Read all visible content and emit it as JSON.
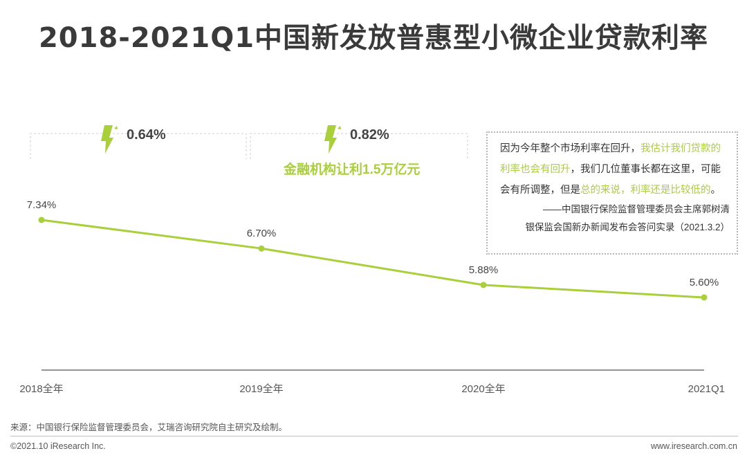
{
  "title": "2018-2021Q1中国新发放普惠型小微企业贷款利率",
  "colors": {
    "accent": "#a9cf3b",
    "text": "#333333",
    "axis": "#555555"
  },
  "chart_data": {
    "type": "line",
    "categories": [
      "2018全年",
      "2019全年",
      "2020全年",
      "2021Q1"
    ],
    "series": [
      {
        "name": "普惠型小微企业贷款利率",
        "values": [
          7.34,
          6.7,
          5.88,
          5.6
        ],
        "labels": [
          "7.34%",
          "6.70%",
          "5.88%",
          "5.60%"
        ]
      }
    ],
    "ylim": [
      4.5,
      8.5
    ],
    "unit": "%",
    "annotations": [
      {
        "from": "2018全年",
        "to": "2019全年",
        "text": "0.64%",
        "icon": "down-arrow-icon"
      },
      {
        "from": "2019全年",
        "to": "2020全年",
        "text": "0.82%",
        "icon": "down-arrow-icon"
      }
    ],
    "annotation_note": "金融机构让利1.5万亿元"
  },
  "quote": {
    "parts": [
      {
        "text": "因为今年整个市场利率在回升，",
        "hl": false
      },
      {
        "text": "我估计我们贷款的利率也会有回升",
        "hl": true
      },
      {
        "text": "，我们几位董事长都在这里，可能会有所调整，但是",
        "hl": false
      },
      {
        "text": "总的来说，利率还是比较低的",
        "hl": true
      },
      {
        "text": "。",
        "hl": false
      }
    ],
    "attribution_1": "——中国银行保险监督管理委员会主席郭树清",
    "attribution_2": "银保监会国新办新闻发布会答问实录（2021.3.2）"
  },
  "source": "来源：中国银行保险监督管理委员会，艾瑞咨询研究院自主研究及绘制。",
  "copyright": "©2021.10 iResearch Inc.",
  "website": "www.iresearch.com.cn"
}
